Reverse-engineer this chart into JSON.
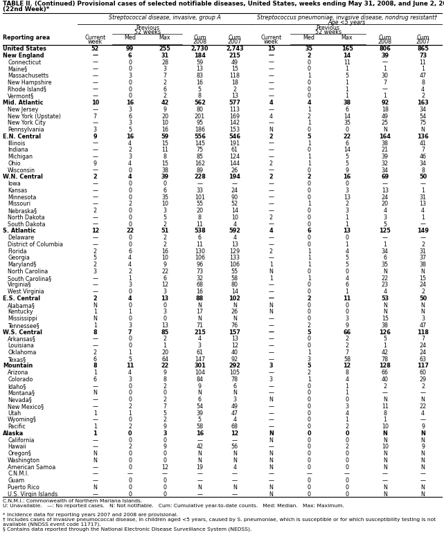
{
  "title_line1": "TABLE II. (Continued) Provisional cases of selected notifiable diseases, United States, weeks ending May 31, 2008, and June 2, 2007",
  "title_line2": "(22nd Week)*",
  "col1_header": "Streptococcal disease, invasive, group A",
  "col2_header": "Streptococcus pneumoniae, invasive disease, nondrug resistant†\nAge <5 years",
  "rows": [
    [
      "United States",
      "52",
      "99",
      "255",
      "2,730",
      "2,743",
      "15",
      "35",
      "165",
      "806",
      "865"
    ],
    [
      "New England",
      "—",
      "6",
      "31",
      "184",
      "215",
      "—",
      "2",
      "14",
      "39",
      "73"
    ],
    [
      "Connecticut",
      "—",
      "0",
      "28",
      "59",
      "49",
      "—",
      "0",
      "11",
      "—",
      "11"
    ],
    [
      "Maine§",
      "—",
      "0",
      "3",
      "13",
      "15",
      "—",
      "0",
      "1",
      "1",
      "1"
    ],
    [
      "Massachusetts",
      "—",
      "3",
      "7",
      "83",
      "118",
      "—",
      "1",
      "5",
      "30",
      "47"
    ],
    [
      "New Hampshire",
      "—",
      "0",
      "2",
      "16",
      "18",
      "—",
      "0",
      "1",
      "7",
      "8"
    ],
    [
      "Rhode Island§",
      "—",
      "0",
      "6",
      "5",
      "2",
      "—",
      "0",
      "1",
      "—",
      "4"
    ],
    [
      "Vermont§",
      "—",
      "0",
      "2",
      "8",
      "13",
      "—",
      "0",
      "1",
      "1",
      "2"
    ],
    [
      "Mid. Atlantic",
      "10",
      "16",
      "42",
      "562",
      "577",
      "4",
      "4",
      "38",
      "92",
      "163"
    ],
    [
      "New Jersey",
      "—",
      "3",
      "9",
      "80",
      "113",
      "—",
      "1",
      "6",
      "18",
      "34"
    ],
    [
      "New York (Upstate)",
      "7",
      "6",
      "20",
      "201",
      "169",
      "4",
      "2",
      "14",
      "49",
      "54"
    ],
    [
      "New York City",
      "—",
      "3",
      "10",
      "95",
      "142",
      "—",
      "1",
      "35",
      "25",
      "75"
    ],
    [
      "Pennsylvania",
      "3",
      "5",
      "16",
      "186",
      "153",
      "N",
      "0",
      "0",
      "N",
      "N"
    ],
    [
      "E.N. Central",
      "9",
      "16",
      "59",
      "556",
      "546",
      "2",
      "5",
      "22",
      "164",
      "136"
    ],
    [
      "Illinois",
      "—",
      "4",
      "15",
      "145",
      "191",
      "—",
      "1",
      "6",
      "38",
      "41"
    ],
    [
      "Indiana",
      "—",
      "2",
      "11",
      "75",
      "61",
      "—",
      "0",
      "14",
      "21",
      "7"
    ],
    [
      "Michigan",
      "—",
      "3",
      "8",
      "85",
      "124",
      "—",
      "1",
      "5",
      "39",
      "46"
    ],
    [
      "Ohio",
      "9",
      "4",
      "15",
      "162",
      "144",
      "2",
      "1",
      "5",
      "32",
      "34"
    ],
    [
      "Wisconsin",
      "—",
      "0",
      "38",
      "89",
      "26",
      "—",
      "0",
      "9",
      "34",
      "8"
    ],
    [
      "W.N. Central",
      "2",
      "4",
      "39",
      "228",
      "194",
      "2",
      "2",
      "16",
      "69",
      "50"
    ],
    [
      "Iowa",
      "—",
      "0",
      "0",
      "—",
      "—",
      "—",
      "0",
      "0",
      "—",
      "—"
    ],
    [
      "Kansas",
      "—",
      "0",
      "6",
      "33",
      "24",
      "—",
      "0",
      "3",
      "13",
      "1"
    ],
    [
      "Minnesota",
      "—",
      "0",
      "35",
      "101",
      "90",
      "—",
      "0",
      "13",
      "24",
      "31"
    ],
    [
      "Missouri",
      "—",
      "2",
      "10",
      "55",
      "52",
      "—",
      "1",
      "2",
      "20",
      "13"
    ],
    [
      "Nebraska§",
      "2",
      "0",
      "3",
      "20",
      "14",
      "—",
      "0",
      "3",
      "4",
      "4"
    ],
    [
      "North Dakota",
      "—",
      "0",
      "5",
      "8",
      "10",
      "2",
      "0",
      "1",
      "3",
      "1"
    ],
    [
      "South Dakota",
      "—",
      "0",
      "2",
      "11",
      "4",
      "—",
      "0",
      "1",
      "5",
      "—"
    ],
    [
      "S. Atlantic",
      "12",
      "22",
      "51",
      "538",
      "592",
      "4",
      "6",
      "13",
      "125",
      "149"
    ],
    [
      "Delaware",
      "—",
      "0",
      "2",
      "6",
      "4",
      "—",
      "0",
      "0",
      "—",
      "—"
    ],
    [
      "District of Columbia",
      "—",
      "0",
      "2",
      "11",
      "13",
      "—",
      "0",
      "1",
      "1",
      "2"
    ],
    [
      "Florida",
      "2",
      "6",
      "16",
      "130",
      "129",
      "2",
      "1",
      "4",
      "34",
      "31"
    ],
    [
      "Georgia",
      "5",
      "4",
      "10",
      "106",
      "133",
      "—",
      "1",
      "5",
      "6",
      "37"
    ],
    [
      "Maryland§",
      "2",
      "4",
      "9",
      "96",
      "106",
      "1",
      "1",
      "5",
      "35",
      "38"
    ],
    [
      "North Carolina",
      "3",
      "2",
      "22",
      "73",
      "55",
      "N",
      "0",
      "0",
      "N",
      "N"
    ],
    [
      "South Carolina§",
      "—",
      "1",
      "6",
      "32",
      "58",
      "1",
      "1",
      "4",
      "22",
      "15"
    ],
    [
      "Virginia§",
      "—",
      "3",
      "12",
      "68",
      "80",
      "—",
      "0",
      "6",
      "23",
      "24"
    ],
    [
      "West Virginia",
      "—",
      "0",
      "3",
      "16",
      "14",
      "—",
      "0",
      "1",
      "4",
      "2"
    ],
    [
      "E.S. Central",
      "2",
      "4",
      "13",
      "88",
      "102",
      "—",
      "2",
      "11",
      "53",
      "50"
    ],
    [
      "Alabama§",
      "N",
      "0",
      "0",
      "N",
      "N",
      "N",
      "0",
      "0",
      "N",
      "N"
    ],
    [
      "Kentucky",
      "1",
      "1",
      "3",
      "17",
      "26",
      "N",
      "0",
      "0",
      "N",
      "N"
    ],
    [
      "Mississippi",
      "N",
      "0",
      "0",
      "N",
      "N",
      "—",
      "0",
      "3",
      "15",
      "3"
    ],
    [
      "Tennessee§",
      "1",
      "3",
      "13",
      "71",
      "76",
      "—",
      "2",
      "9",
      "38",
      "47"
    ],
    [
      "W.S. Central",
      "8",
      "7",
      "85",
      "215",
      "157",
      "—",
      "5",
      "66",
      "126",
      "118"
    ],
    [
      "Arkansas§",
      "—",
      "0",
      "2",
      "4",
      "13",
      "—",
      "0",
      "2",
      "5",
      "7"
    ],
    [
      "Louisiana",
      "—",
      "0",
      "1",
      "3",
      "12",
      "—",
      "0",
      "2",
      "1",
      "24"
    ],
    [
      "Oklahoma",
      "2",
      "1",
      "20",
      "61",
      "40",
      "—",
      "1",
      "7",
      "42",
      "24"
    ],
    [
      "Texas§",
      "6",
      "5",
      "64",
      "147",
      "92",
      "—",
      "3",
      "58",
      "78",
      "63"
    ],
    [
      "Mountain",
      "8",
      "11",
      "22",
      "301",
      "292",
      "3",
      "5",
      "12",
      "128",
      "117"
    ],
    [
      "Arizona",
      "1",
      "4",
      "9",
      "104",
      "105",
      "—",
      "2",
      "8",
      "66",
      "60"
    ],
    [
      "Colorado",
      "6",
      "3",
      "8",
      "84",
      "78",
      "3",
      "1",
      "4",
      "40",
      "29"
    ],
    [
      "Idaho§",
      "—",
      "0",
      "2",
      "9",
      "6",
      "—",
      "0",
      "1",
      "2",
      "2"
    ],
    [
      "Montana§",
      "N",
      "0",
      "0",
      "N",
      "N",
      "—",
      "0",
      "1",
      "—",
      "—"
    ],
    [
      "Nevada§",
      "—",
      "0",
      "2",
      "6",
      "3",
      "N",
      "0",
      "0",
      "N",
      "N"
    ],
    [
      "New Mexico§",
      "—",
      "2",
      "7",
      "54",
      "49",
      "—",
      "0",
      "3",
      "11",
      "22"
    ],
    [
      "Utah",
      "1",
      "1",
      "5",
      "39",
      "47",
      "—",
      "0",
      "4",
      "8",
      "4"
    ],
    [
      "Wyoming§",
      "—",
      "0",
      "2",
      "5",
      "4",
      "—",
      "0",
      "1",
      "1",
      "—"
    ],
    [
      "Pacific",
      "1",
      "2",
      "9",
      "58",
      "68",
      "—",
      "0",
      "2",
      "10",
      "9"
    ],
    [
      "Alaska",
      "1",
      "0",
      "3",
      "16",
      "12",
      "N",
      "0",
      "0",
      "N",
      "N"
    ],
    [
      "California",
      "—",
      "0",
      "0",
      "—",
      "—",
      "N",
      "0",
      "0",
      "N",
      "N"
    ],
    [
      "Hawaii",
      "—",
      "2",
      "9",
      "42",
      "56",
      "—",
      "0",
      "2",
      "10",
      "9"
    ],
    [
      "Oregon§",
      "N",
      "0",
      "0",
      "N",
      "N",
      "N",
      "0",
      "0",
      "N",
      "N"
    ],
    [
      "Washington",
      "N",
      "0",
      "0",
      "N",
      "N",
      "N",
      "0",
      "0",
      "N",
      "N"
    ],
    [
      "American Samoa",
      "—",
      "0",
      "12",
      "19",
      "4",
      "N",
      "0",
      "0",
      "N",
      "N"
    ],
    [
      "C.N.M.I.",
      "—",
      "—",
      "—",
      "—",
      "—",
      "—",
      "—",
      "—",
      "—",
      "—"
    ],
    [
      "Guam",
      "—",
      "0",
      "0",
      "—",
      "—",
      "—",
      "0",
      "0",
      "—",
      "—"
    ],
    [
      "Puerto Rico",
      "N",
      "0",
      "0",
      "N",
      "N",
      "N",
      "0",
      "0",
      "N",
      "N"
    ],
    [
      "U.S. Virgin Islands",
      "—",
      "0",
      "0",
      "—",
      "—",
      "N",
      "0",
      "0",
      "N",
      "N"
    ]
  ],
  "bold_rows": [
    0,
    1,
    8,
    13,
    19,
    27,
    37,
    42,
    47,
    57
  ],
  "footnotes": [
    "C.N.M.I.: Commonwealth of Northern Mariana Islands.",
    "U: Unavailable.   —: No reported cases.   N: Not notifiable.   Cum: Cumulative year-to-date counts.   Med: Median.   Max: Maximum.",
    "* Incidence data for reporting years 2007 and 2008 are provisional.",
    "† Includes cases of invasive pneumococcal disease, in children aged <5 years, caused by S. pneumoniae, which is susceptible or for which susceptibility testing is not available (NNDSS event code 11717).",
    "§ Contains data reported through the National Electronic Disease Surveillance System (NEDSS)."
  ]
}
